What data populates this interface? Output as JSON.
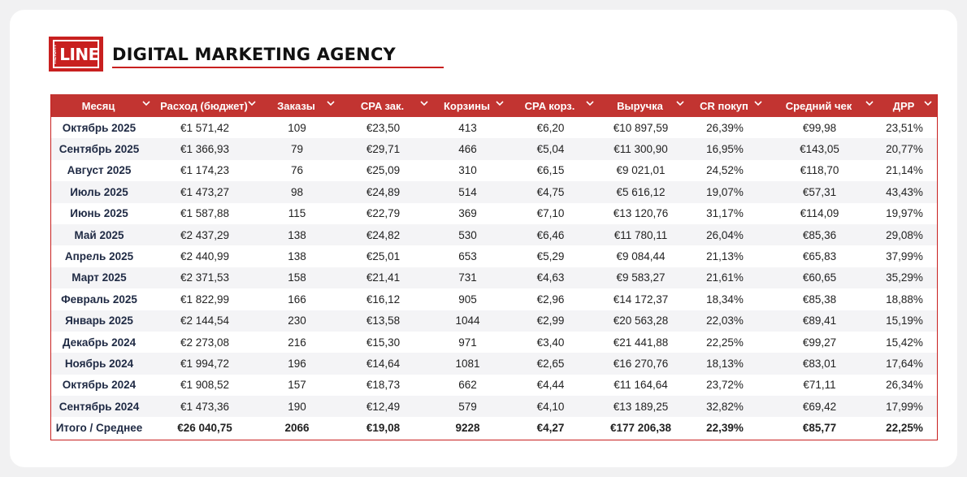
{
  "brand": {
    "logo_small": "HEIGHT",
    "logo_big": "LINE",
    "title": "DIGITAL MARKETING AGENCY"
  },
  "colors": {
    "accent": "#c8201f",
    "header_bg": "#c23431"
  },
  "table": {
    "headers": [
      "Месяц",
      "Расход (бюджет)",
      "Заказы",
      "CPA зак.",
      "Корзины",
      "CPA корз.",
      "Выручка",
      "CR покуп",
      "Средний чек",
      "ДРР"
    ],
    "header_icon": "chevron-down-icon",
    "rows": [
      [
        "Октябрь 2025",
        "€1 571,42",
        "109",
        "€23,50",
        "413",
        "€6,20",
        "€10 897,59",
        "26,39%",
        "€99,98",
        "23,51%"
      ],
      [
        "Сентябрь 2025",
        "€1 366,93",
        "79",
        "€29,71",
        "466",
        "€5,04",
        "€11 300,90",
        "16,95%",
        "€143,05",
        "20,77%"
      ],
      [
        "Август 2025",
        "€1 174,23",
        "76",
        "€25,09",
        "310",
        "€6,15",
        "€9 021,01",
        "24,52%",
        "€118,70",
        "21,14%"
      ],
      [
        "Июль 2025",
        "€1 473,27",
        "98",
        "€24,89",
        "514",
        "€4,75",
        "€5 616,12",
        "19,07%",
        "€57,31",
        "43,43%"
      ],
      [
        "Июнь 2025",
        "€1 587,88",
        "115",
        "€22,79",
        "369",
        "€7,10",
        "€13 120,76",
        "31,17%",
        "€114,09",
        "19,97%"
      ],
      [
        "Май 2025",
        "€2 437,29",
        "138",
        "€24,82",
        "530",
        "€6,46",
        "€11 780,11",
        "26,04%",
        "€85,36",
        "29,08%"
      ],
      [
        "Апрель 2025",
        "€2 440,99",
        "138",
        "€25,01",
        "653",
        "€5,29",
        "€9 084,44",
        "21,13%",
        "€65,83",
        "37,99%"
      ],
      [
        "Март 2025",
        "€2 371,53",
        "158",
        "€21,41",
        "731",
        "€4,63",
        "€9 583,27",
        "21,61%",
        "€60,65",
        "35,29%"
      ],
      [
        "Февраль 2025",
        "€1 822,99",
        "166",
        "€16,12",
        "905",
        "€2,96",
        "€14 172,37",
        "18,34%",
        "€85,38",
        "18,88%"
      ],
      [
        "Январь 2025",
        "€2 144,54",
        "230",
        "€13,58",
        "1044",
        "€2,99",
        "€20 563,28",
        "22,03%",
        "€89,41",
        "15,19%"
      ],
      [
        "Декабрь 2024",
        "€2 273,08",
        "216",
        "€15,30",
        "971",
        "€3,40",
        "€21 441,88",
        "22,25%",
        "€99,27",
        "15,42%"
      ],
      [
        "Ноябрь 2024",
        "€1 994,72",
        "196",
        "€14,64",
        "1081",
        "€2,65",
        "€16 270,76",
        "18,13%",
        "€83,01",
        "17,64%"
      ],
      [
        "Октябрь 2024",
        "€1 908,52",
        "157",
        "€18,73",
        "662",
        "€4,44",
        "€11 164,64",
        "23,72%",
        "€71,11",
        "26,34%"
      ],
      [
        "Сентябрь 2024",
        "€1 473,36",
        "190",
        "€12,49",
        "579",
        "€4,10",
        "€13 189,25",
        "32,82%",
        "€69,42",
        "17,99%"
      ]
    ],
    "total": [
      "Итого / Среднее",
      "€26 040,75",
      "2066",
      "€19,08",
      "9228",
      "€4,27",
      "€177 206,38",
      "22,39%",
      "€85,77",
      "22,25%"
    ]
  }
}
